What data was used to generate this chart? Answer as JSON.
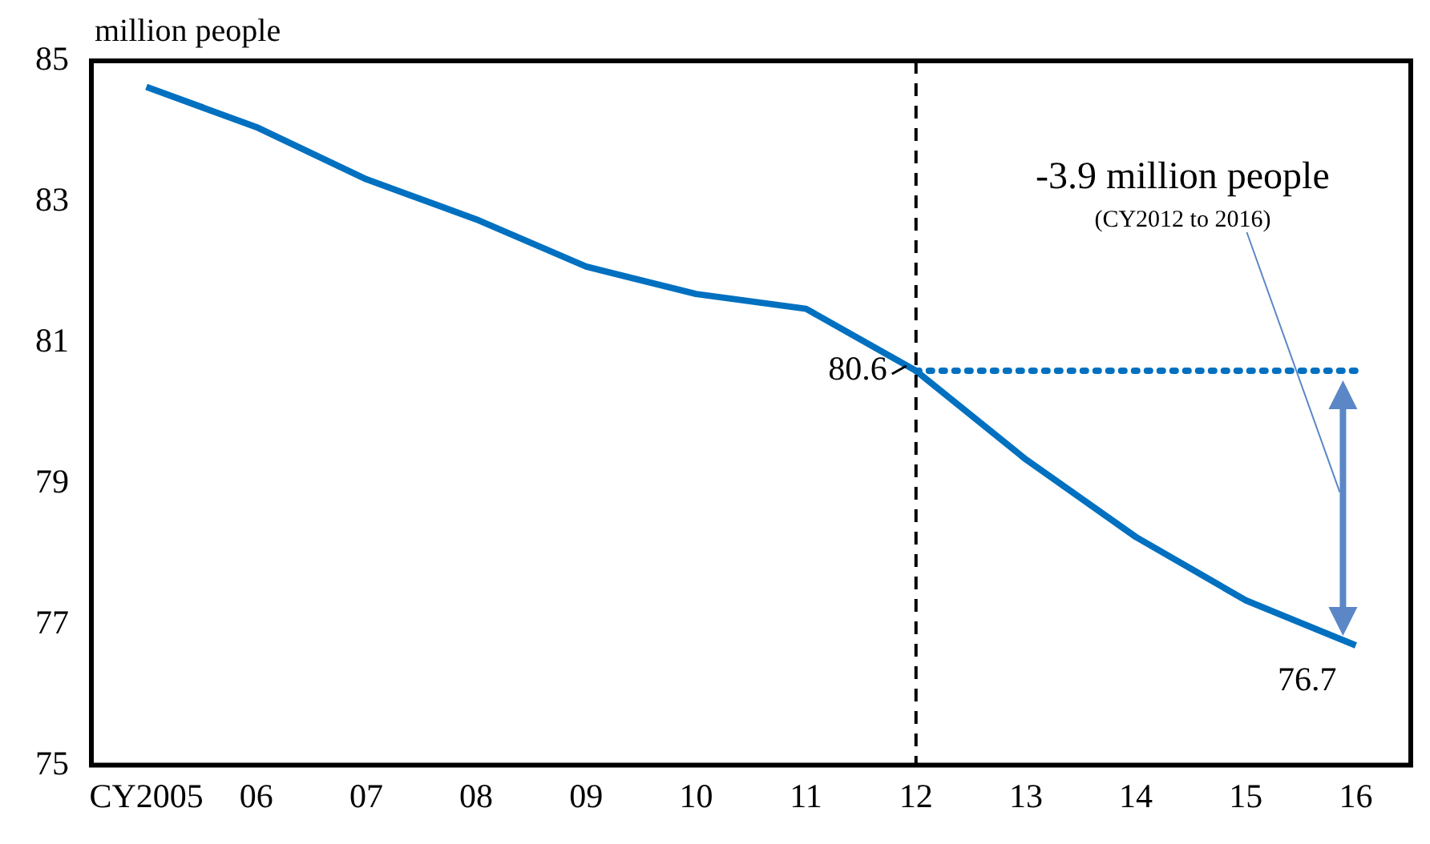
{
  "chart_data": {
    "type": "line",
    "ylabel": "million people",
    "categories": [
      "CY2005",
      "06",
      "07",
      "08",
      "09",
      "10",
      "11",
      "12",
      "13",
      "14",
      "15",
      "16"
    ],
    "series": [
      {
        "color": "#0070c0",
        "values": [
          84.63,
          84.06,
          83.32,
          82.75,
          82.08,
          81.69,
          81.48,
          80.6,
          79.34,
          78.24,
          77.34,
          76.7
        ],
        "value_labels": [
          null,
          null,
          null,
          null,
          null,
          null,
          null,
          "80.6",
          null,
          null,
          null,
          "76.7"
        ]
      },
      {
        "color": "#0070c0",
        "line_style": "dotted",
        "values": [
          null,
          null,
          null,
          null,
          null,
          null,
          null,
          80.6,
          80.6,
          80.6,
          80.6,
          80.6
        ]
      }
    ],
    "ylim": [
      75,
      85
    ],
    "yticks": [
      75,
      77,
      79,
      81,
      83,
      85
    ],
    "grid": false,
    "legend": false,
    "marker": "none",
    "line_style": "solid",
    "ref_lines": [
      {
        "axis": "x",
        "value": "12",
        "color": "#000000",
        "line_style": "dashed"
      }
    ],
    "annotations": [
      "-3.9 million people",
      "(CY2012 to 2016)"
    ]
  }
}
